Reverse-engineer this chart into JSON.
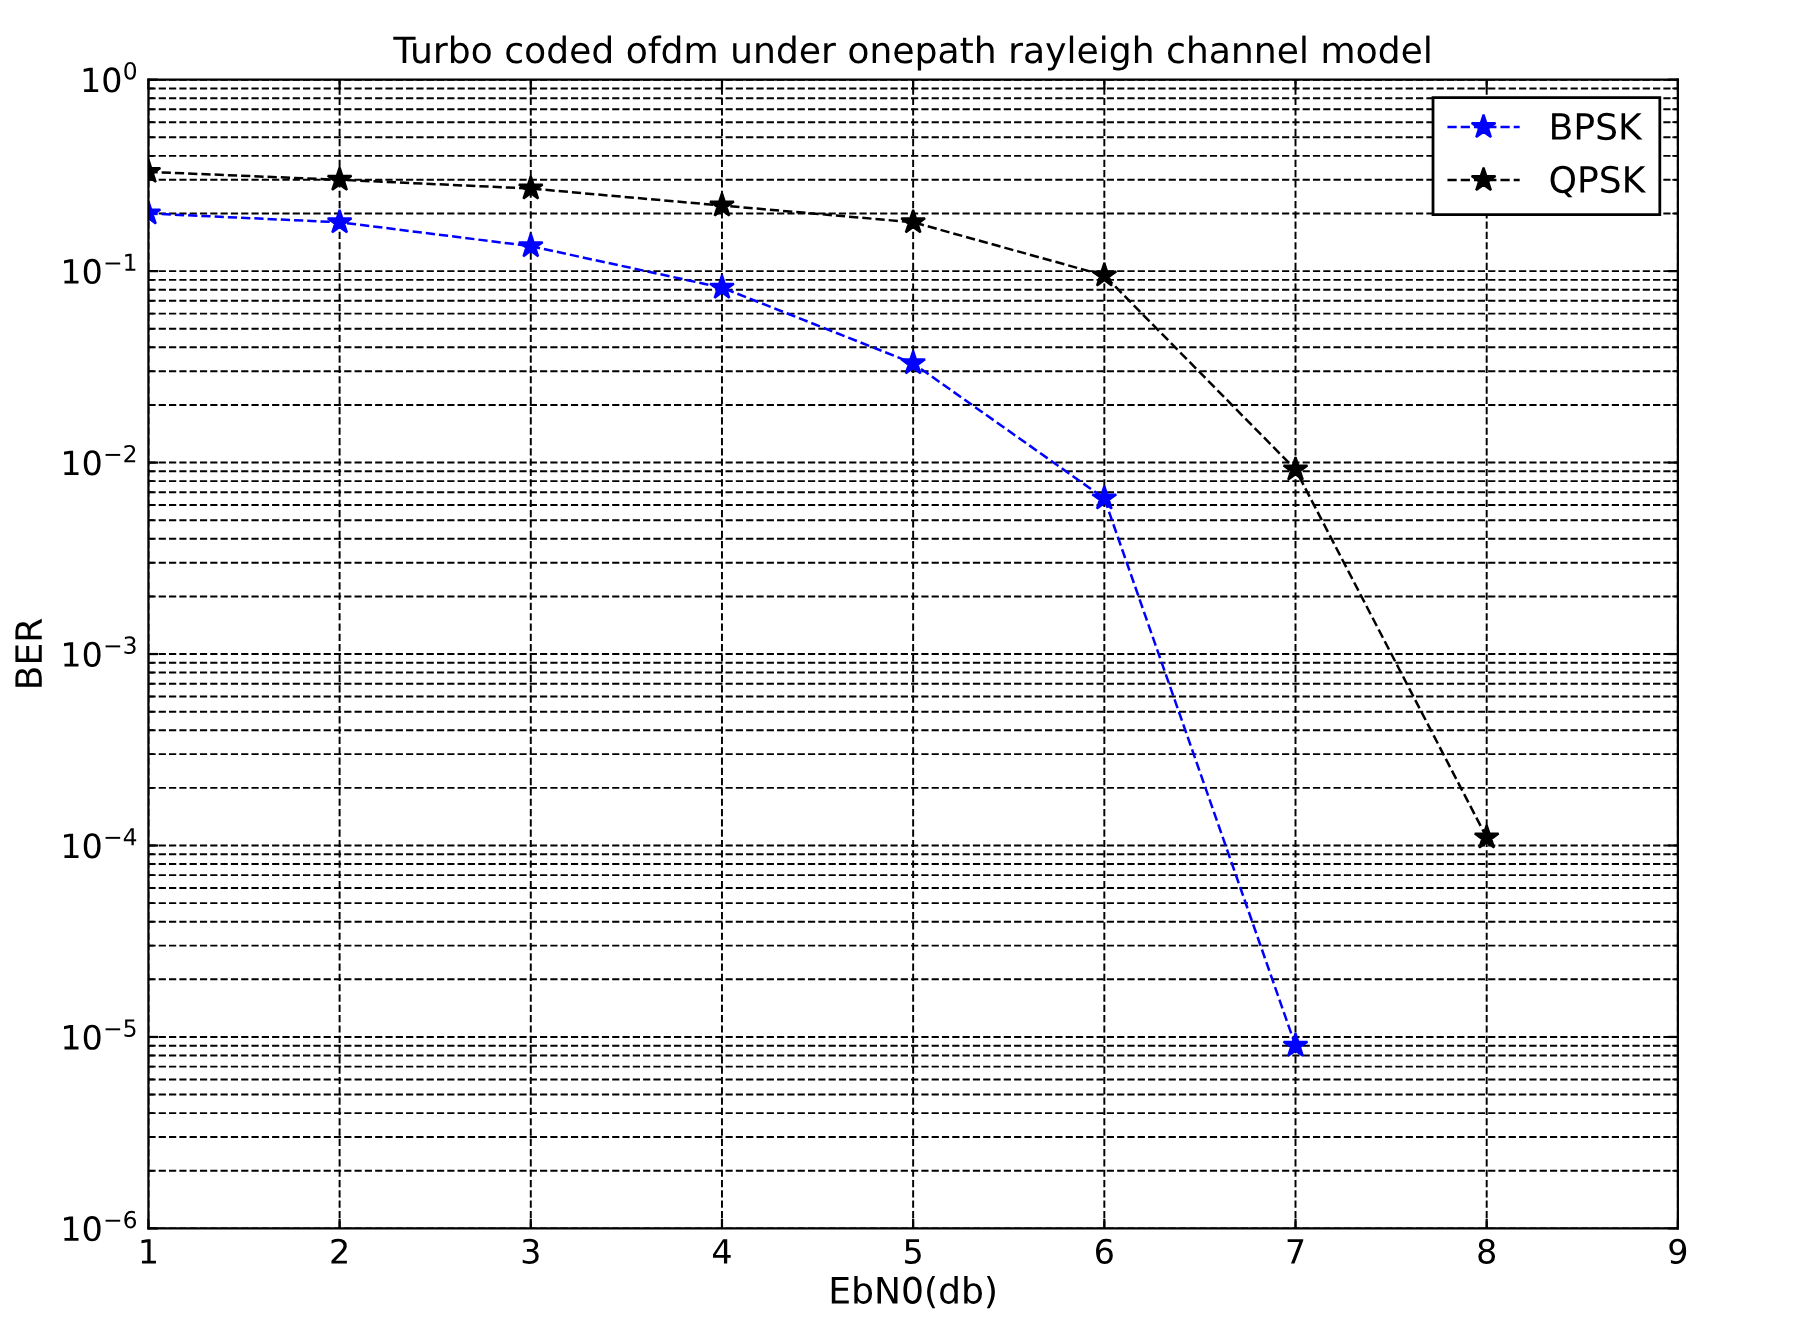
{
  "chart_data": {
    "type": "line",
    "title": "Turbo coded ofdm under onepath rayleigh channel model",
    "xlabel": "EbN0(db)",
    "ylabel": "BER",
    "x": [
      1,
      2,
      3,
      4,
      5,
      6,
      7,
      8
    ],
    "series": [
      {
        "name": "BPSK",
        "color": "#0000ff",
        "values": [
          0.2,
          0.18,
          0.135,
          0.082,
          0.033,
          0.0065,
          9e-06,
          null
        ]
      },
      {
        "name": "QPSK",
        "color": "#000000",
        "values": [
          0.33,
          0.3,
          0.27,
          0.22,
          0.18,
          0.095,
          0.0092,
          0.00011
        ]
      }
    ],
    "log": "y",
    "xlim": [
      1,
      9
    ],
    "xticks": [
      1,
      2,
      3,
      4,
      5,
      6,
      7,
      8,
      9
    ],
    "ylim": [
      1e-06,
      1
    ],
    "yticks": [
      {
        "value": 1e-06,
        "label": "10$^{−6}$"
      },
      {
        "value": 1e-05,
        "label": "10$^{−5}$"
      },
      {
        "value": 0.0001,
        "label": "10$^{−4}$"
      },
      {
        "value": 0.001,
        "label": "10$^{−3}$"
      },
      {
        "value": 0.01,
        "label": "10$^{−2}$"
      },
      {
        "value": 0.1,
        "label": "10$^{−1}$"
      },
      {
        "value": 1,
        "label": "10$^{0}$"
      }
    ],
    "grid": true,
    "legend": "top right",
    "marker": "star",
    "line_style": "dashed"
  }
}
